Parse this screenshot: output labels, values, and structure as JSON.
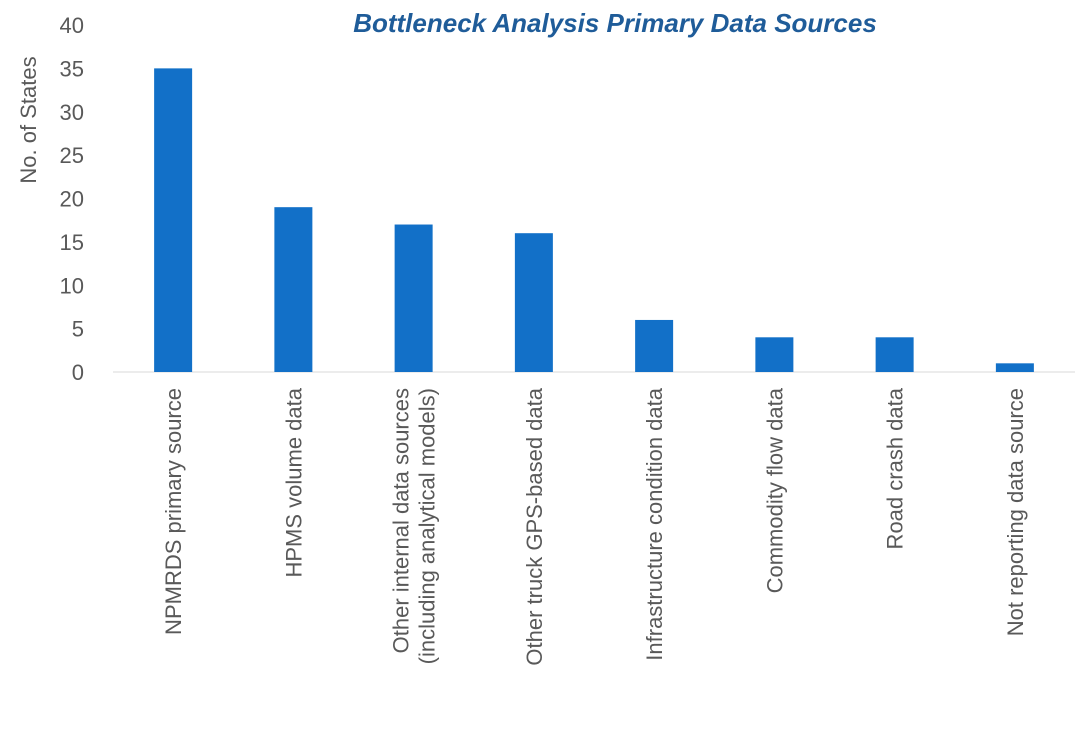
{
  "chart_data": {
    "type": "bar",
    "title": "Bottleneck Analysis Primary Data Sources",
    "y_label": "No. of States",
    "categories": [
      "NPMRDS primary source",
      "HPMS volume data",
      [
        "Other internal data sources",
        "(including analytical models)"
      ],
      "Other truck GPS-based data",
      "Infrastructure condition data",
      "Commodity flow data",
      "Road crash data",
      "Not reporting data source"
    ],
    "values": [
      35,
      19,
      17,
      16,
      6,
      4,
      4,
      1
    ],
    "color": "#1270c8",
    "ylim": [
      0,
      40
    ],
    "yticks": [
      0,
      5,
      10,
      15,
      20,
      25,
      30,
      35,
      40
    ],
    "grid": false
  }
}
